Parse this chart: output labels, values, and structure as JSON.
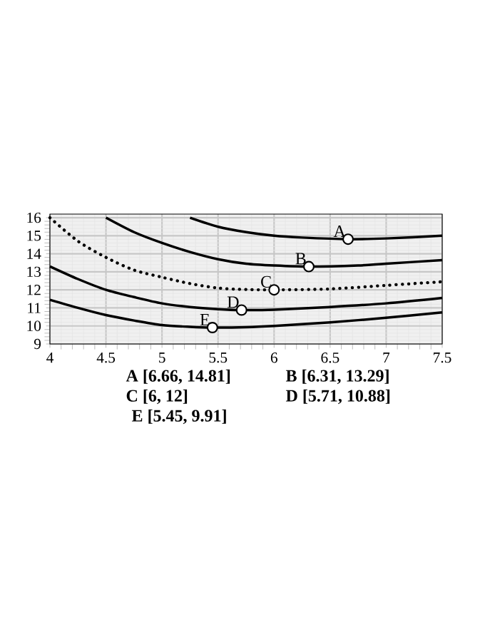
{
  "chart_data": {
    "type": "line",
    "xlim": [
      4,
      7.5
    ],
    "ylim": [
      9,
      16.2
    ],
    "xticks": [
      4,
      4.5,
      5,
      5.5,
      6,
      6.5,
      7,
      7.5
    ],
    "yticks": [
      9,
      10,
      11,
      12,
      13,
      14,
      15,
      16
    ],
    "grid": true,
    "series": [
      {
        "color": "#000000",
        "line_style": "solid",
        "x": [
          5.25,
          5.5,
          5.75,
          6,
          6.25,
          6.66,
          7,
          7.5
        ],
        "values": [
          16,
          15.5,
          15.2,
          15.0,
          14.9,
          14.81,
          14.85,
          15.0
        ]
      },
      {
        "color": "#000000",
        "line_style": "solid",
        "x": [
          4.5,
          4.75,
          5,
          5.25,
          5.5,
          5.75,
          6,
          6.31,
          6.75,
          7,
          7.5
        ],
        "values": [
          16,
          15.2,
          14.6,
          14.1,
          13.7,
          13.45,
          13.35,
          13.29,
          13.35,
          13.45,
          13.65
        ]
      },
      {
        "color": "#000000",
        "line_style": "dotted",
        "x": [
          4,
          4.25,
          4.5,
          4.75,
          5,
          5.25,
          5.5,
          5.75,
          6,
          6.5,
          7,
          7.5
        ],
        "values": [
          16,
          14.7,
          13.8,
          13.1,
          12.7,
          12.35,
          12.1,
          12.02,
          12.0,
          12.05,
          12.25,
          12.45
        ]
      },
      {
        "color": "#000000",
        "line_style": "solid",
        "x": [
          4,
          4.25,
          4.5,
          4.75,
          5,
          5.25,
          5.5,
          5.71,
          6,
          6.5,
          7,
          7.5
        ],
        "values": [
          13.3,
          12.6,
          12.0,
          11.6,
          11.25,
          11.05,
          10.93,
          10.88,
          10.9,
          11.05,
          11.25,
          11.55
        ]
      },
      {
        "color": "#000000",
        "line_style": "solid",
        "x": [
          4,
          4.25,
          4.5,
          4.75,
          5,
          5.25,
          5.45,
          5.75,
          6,
          6.5,
          7,
          7.5
        ],
        "values": [
          11.45,
          11.0,
          10.6,
          10.3,
          10.05,
          9.95,
          9.91,
          9.93,
          10.0,
          10.2,
          10.45,
          10.75
        ]
      },
      {
        "type": "scatter",
        "color": "#000000",
        "marker": "circle",
        "x": [
          6.66,
          6.31,
          6,
          5.71,
          5.45
        ],
        "values": [
          14.81,
          13.29,
          12,
          10.88,
          9.91
        ]
      }
    ],
    "annotations": [
      {
        "text": "A",
        "x": 6.66,
        "y": 14.81
      },
      {
        "text": "B",
        "x": 6.31,
        "y": 13.29
      },
      {
        "text": "C",
        "x": 6,
        "y": 12
      },
      {
        "text": "D",
        "x": 5.71,
        "y": 10.88
      },
      {
        "text": "E",
        "x": 5.45,
        "y": 9.91
      },
      "A [6.66, 14.81]",
      "B [6.31, 13.29]",
      "C [6, 12]",
      "D [5.71, 10.88]",
      "E [5.45, 9.91]"
    ]
  }
}
